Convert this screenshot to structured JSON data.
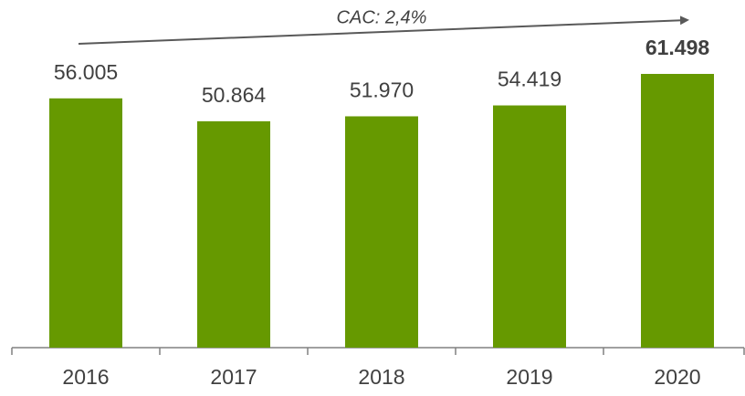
{
  "chart_data": {
    "type": "bar",
    "annotation": "CAC: 2,4%",
    "categories": [
      "2016",
      "2017",
      "2018",
      "2019",
      "2020"
    ],
    "values": [
      56005,
      50864,
      51970,
      54419,
      61498
    ],
    "value_labels": [
      "56.005",
      "50.864",
      "51.970",
      "54.419",
      "61.498"
    ],
    "color": "#669900"
  }
}
